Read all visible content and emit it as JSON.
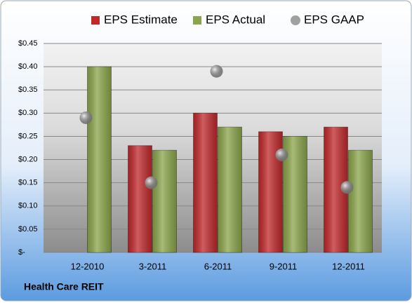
{
  "chart_data": {
    "type": "bar",
    "categories": [
      "12-2010",
      "3-2011",
      "6-2011",
      "9-2011",
      "12-2011"
    ],
    "series": [
      {
        "name": "EPS Estimate",
        "color": "#c0282a",
        "values": [
          null,
          0.23,
          0.3,
          0.26,
          0.27
        ]
      },
      {
        "name": "EPS Actual",
        "color": "#8aa54a",
        "values": [
          0.4,
          0.22,
          0.27,
          0.25,
          0.22
        ]
      },
      {
        "name": "EPS GAAP",
        "color": "#a0a0a0",
        "values": [
          0.29,
          0.15,
          0.39,
          0.21,
          0.14
        ],
        "marker": "circle"
      }
    ],
    "ylim": [
      0,
      0.45
    ],
    "yticks": [
      {
        "value": 0,
        "label": "$-"
      },
      {
        "value": 0.05,
        "label": "$0.05"
      },
      {
        "value": 0.1,
        "label": "$0.10"
      },
      {
        "value": 0.15,
        "label": "$0.15"
      },
      {
        "value": 0.2,
        "label": "$0.20"
      },
      {
        "value": 0.25,
        "label": "$0.25"
      },
      {
        "value": 0.3,
        "label": "$0.30"
      },
      {
        "value": 0.35,
        "label": "$0.35"
      },
      {
        "value": 0.4,
        "label": "$0.40"
      },
      {
        "value": 0.45,
        "label": "$0.45"
      }
    ],
    "grid": true,
    "legend": "top",
    "footnote": "Health Care REIT"
  }
}
